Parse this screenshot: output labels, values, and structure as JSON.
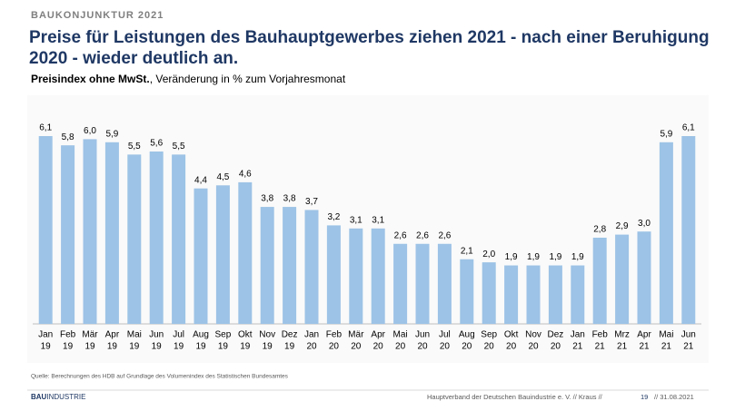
{
  "header": "BAUKONJUNKTUR 2021",
  "chart_data": {
    "type": "bar",
    "title": "Preise für Leistungen des Bauhauptgewerbes ziehen 2021 - nach einer Beruhigung 2020 - wieder deutlich an.",
    "subtitle_bold": "Preisindex ohne MwSt.",
    "subtitle": ", Veränderung  in % zum Vorjahresmonat",
    "categories": [
      [
        "Jan",
        "19"
      ],
      [
        "Feb",
        "19"
      ],
      [
        "Mär",
        "19"
      ],
      [
        "Apr",
        "19"
      ],
      [
        "Mai",
        "19"
      ],
      [
        "Jun",
        "19"
      ],
      [
        "Jul",
        "19"
      ],
      [
        "Aug",
        "19"
      ],
      [
        "Sep",
        "19"
      ],
      [
        "Okt",
        "19"
      ],
      [
        "Nov",
        "19"
      ],
      [
        "Dez",
        "19"
      ],
      [
        "Jan",
        "20"
      ],
      [
        "Feb",
        "20"
      ],
      [
        "Mär",
        "20"
      ],
      [
        "Apr",
        "20"
      ],
      [
        "Mai",
        "20"
      ],
      [
        "Jun",
        "20"
      ],
      [
        "Jul",
        "20"
      ],
      [
        "Aug",
        "20"
      ],
      [
        "Sep",
        "20"
      ],
      [
        "Okt",
        "20"
      ],
      [
        "Nov",
        "20"
      ],
      [
        "Dez",
        "20"
      ],
      [
        "Jan",
        "21"
      ],
      [
        "Feb",
        "21"
      ],
      [
        "Mrz",
        "21"
      ],
      [
        "Apr",
        "21"
      ],
      [
        "Mai",
        "21"
      ],
      [
        "Jun",
        "21"
      ]
    ],
    "values": [
      6.1,
      5.8,
      6.0,
      5.9,
      5.5,
      5.6,
      5.5,
      4.4,
      4.5,
      4.6,
      3.8,
      3.8,
      3.7,
      3.2,
      3.1,
      3.1,
      2.6,
      2.6,
      2.6,
      2.1,
      2.0,
      1.9,
      1.9,
      1.9,
      1.9,
      2.8,
      2.9,
      3.0,
      5.9,
      6.1
    ],
    "value_labels": [
      "6,1",
      "5,8",
      "6,0",
      "5,9",
      "5,5",
      "5,6",
      "5,5",
      "4,4",
      "4,5",
      "4,6",
      "3,8",
      "3,8",
      "3,7",
      "3,2",
      "3,1",
      "3,1",
      "2,6",
      "2,6",
      "2,6",
      "2,1",
      "2,0",
      "1,9",
      "1,9",
      "1,9",
      "1,9",
      "2,8",
      "2,9",
      "3,0",
      "5,9",
      "6,1"
    ],
    "color": "#9dc3e6",
    "source": "Quelle: Berechnungen des HDB auf Grundlage des Volumenindex des Statistischen Bundesamtes"
  },
  "footer": {
    "logo_bau": "BAU",
    "logo_industrie": "INDUSTRIE",
    "text": "Hauptverband  der Deutschen Bauindustrie e. V.  //  Kraus  //",
    "page": "19",
    "date": "//  31.08.2021"
  }
}
